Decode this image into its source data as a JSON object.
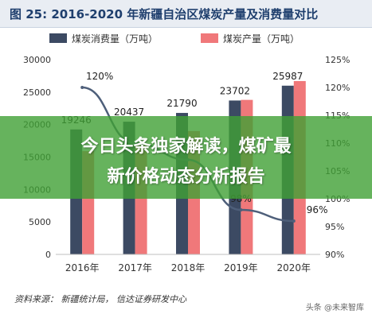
{
  "header": {
    "title": "图 25:  2016-2020 年新疆自治区煤炭产量及消费量对比"
  },
  "banner": {
    "line1": "今日头条独家解读，煤矿最",
    "line2": "新价格动态分析报告"
  },
  "footer": {
    "source": "资料来源：   新疆统计局，   信达证券研发中心",
    "watermark": "头条 @未来智库"
  },
  "colors": {
    "consumption": "#3c4a63",
    "production": "#f0787a",
    "ratio_line": "#4e5f7a",
    "grid": "#d9d9d9"
  },
  "chart_data": {
    "type": "bar",
    "categories": [
      "2016年",
      "2017年",
      "2018年",
      "2019年",
      "2020年"
    ],
    "series": [
      {
        "name": "煤炭消费量（万吨）",
        "values": [
          19246,
          20437,
          21790,
          23702,
          25987
        ],
        "axis": "left"
      },
      {
        "name": "煤炭产量（万吨）",
        "values": [
          15911,
          16803,
          19000,
          23800,
          26700
        ],
        "axis": "left"
      },
      {
        "type": "line",
        "values": [
          1.2,
          1.1,
          1.07,
          0.98,
          0.96
        ],
        "axis": "right"
      }
    ],
    "bar_labels": [
      "19246",
      "20437",
      "21790",
      "23702",
      "25987"
    ],
    "line_labels": {
      "0": "120%",
      "3": "98%",
      "4": "96%"
    },
    "y_left": {
      "ylim": [
        0,
        30000
      ],
      "ticks": [
        "0",
        "5000",
        "10000",
        "15000",
        "20000",
        "25000",
        "30000"
      ]
    },
    "y_right": {
      "ylim": [
        0.9,
        1.25
      ],
      "ticks": [
        "90%",
        "95%",
        "100%",
        "105%",
        "110%",
        "115%",
        "120%",
        "125%"
      ]
    },
    "legend_position": "top",
    "grid": false
  }
}
